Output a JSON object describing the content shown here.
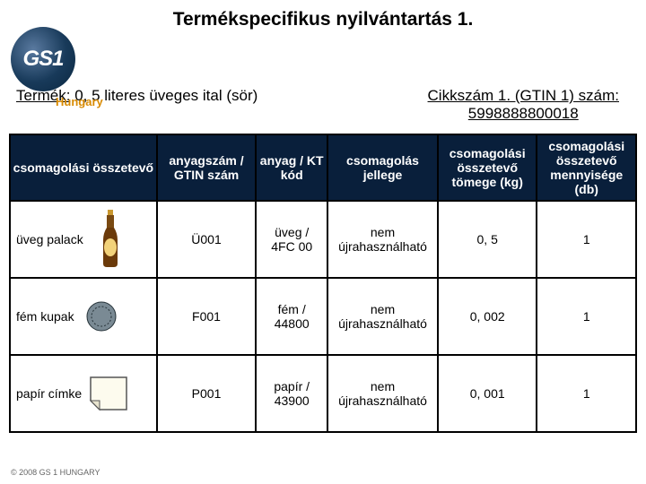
{
  "title": "Termékspecifikus nyilvántartás 1.",
  "logo": {
    "big": "GS",
    "one": "1",
    "sub": "Hungary"
  },
  "subhead_left_label": "Termék:",
  "subhead_left_value": "0, 5 literes üveges ital (sör)",
  "subhead_right_line1": "Cikkszám 1. (GTIN 1) szám:",
  "subhead_right_line2": "5998888800018",
  "columns": [
    "csomagolási összetevő",
    "anyagszám / GTIN szám",
    "anyag / KT kód",
    "csomagolás jellege",
    "csomagolási összetevő tömege (kg)",
    "csomagolási összetevő mennyisége (db)"
  ],
  "rows": [
    {
      "name": "üveg palack",
      "code": "Ü001",
      "mat1": "üveg /",
      "mat2": "4FC 00",
      "type": "nem újrahasználható",
      "weight": "0, 5",
      "qty": "1",
      "icon": "bottle"
    },
    {
      "name": "fém kupak",
      "code": "F001",
      "mat1": "fém /",
      "mat2": "44800",
      "type": "nem újrahasználható",
      "weight": "0, 002",
      "qty": "1",
      "icon": "cap"
    },
    {
      "name": "papír címke",
      "code": "P001",
      "mat1": "papír /",
      "mat2": "43900",
      "type": "nem újrahasználható",
      "weight": "0, 001",
      "qty": "1",
      "icon": "label"
    }
  ],
  "footer": "© 2008 GS 1 HUNGARY",
  "style": {
    "header_bg": "#091f3b",
    "header_fg": "#ffffff",
    "border": "#000000",
    "logo_gradient_inner": "#5a7aa0",
    "logo_gradient_outer": "#0b2740",
    "logo_sub_color": "#d88a00"
  }
}
